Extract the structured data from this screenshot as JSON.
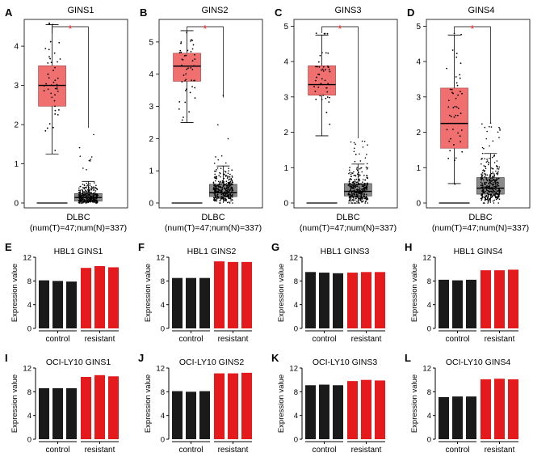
{
  "figure": {
    "colors": {
      "tumor": "#f07070",
      "normal": "#8a8a8a",
      "control": "#1a1a1a",
      "resistant": "#e41a1c",
      "asterisk": "#e41a1c",
      "axis": "#000000",
      "frame": "#000000"
    },
    "significance_mark": "*"
  },
  "chart_data": [
    {
      "type": "box",
      "panel": "A",
      "title": "GINS1",
      "ylim": [
        0,
        4.6
      ],
      "yticks": [
        0,
        1,
        2,
        3,
        4
      ],
      "xlabel": "DLBC",
      "xsublabel": "(num(T)=47;num(N)=337)",
      "tumor_n": 47,
      "normal_n": 337,
      "tumor": {
        "min": 1.25,
        "q1": 2.47,
        "median": 3.0,
        "q3": 3.5,
        "max": 4.55,
        "lo": 1.2,
        "hi": 4.6
      },
      "normal": {
        "min": 0.0,
        "q1": 0.05,
        "median": 0.14,
        "q3": 0.24,
        "max": 0.55,
        "lo": 0.0,
        "hi": 1.9
      }
    },
    {
      "type": "box",
      "panel": "B",
      "title": "GINS2",
      "ylim": [
        0,
        5.6
      ],
      "yticks": [
        0,
        1,
        2,
        3,
        4,
        5
      ],
      "xlabel": "DLBC",
      "xsublabel": "(num(T)=47;num(N)=337)",
      "tumor_n": 47,
      "normal_n": 337,
      "tumor": {
        "min": 2.5,
        "q1": 3.78,
        "median": 4.25,
        "q3": 4.65,
        "max": 5.35,
        "lo": 2.3,
        "hi": 5.4
      },
      "normal": {
        "min": 0.0,
        "q1": 0.2,
        "median": 0.32,
        "q3": 0.58,
        "max": 1.15,
        "lo": 0.0,
        "hi": 3.5
      }
    },
    {
      "type": "box",
      "panel": "C",
      "title": "GINS3",
      "ylim": [
        0,
        5.1
      ],
      "yticks": [
        0,
        1,
        2,
        3,
        4,
        5
      ],
      "xlabel": "DLBC",
      "xsublabel": "(num(T)=47;num(N)=337)",
      "tumor_n": 47,
      "normal_n": 337,
      "tumor": {
        "min": 1.9,
        "q1": 3.05,
        "median": 3.35,
        "q3": 3.88,
        "max": 4.75,
        "lo": 1.7,
        "hi": 4.8
      },
      "normal": {
        "min": 0.0,
        "q1": 0.2,
        "median": 0.33,
        "q3": 0.55,
        "max": 1.1,
        "lo": 0.0,
        "hi": 1.8
      }
    },
    {
      "type": "box",
      "panel": "D",
      "title": "GINS4",
      "ylim": [
        0,
        5.1
      ],
      "yticks": [
        0,
        1,
        2,
        3,
        4,
        5
      ],
      "xlabel": "DLBC",
      "xsublabel": "(num(T)=47;num(N)=337)",
      "tumor_n": 47,
      "normal_n": 337,
      "tumor": {
        "min": 0.55,
        "q1": 1.55,
        "median": 2.25,
        "q3": 3.25,
        "max": 4.75,
        "lo": 0.5,
        "hi": 4.8
      },
      "normal": {
        "min": 0.0,
        "q1": 0.25,
        "median": 0.42,
        "q3": 0.72,
        "max": 1.4,
        "lo": 0.0,
        "hi": 2.3
      }
    },
    {
      "type": "bar",
      "panel": "E",
      "title": "HBL1 GINS1",
      "ylabel": "Expression value",
      "ylim": [
        0,
        12
      ],
      "yticks": [
        0,
        4,
        8,
        12
      ],
      "categories": [
        "control",
        "resistant"
      ],
      "control": [
        8.1,
        8.0,
        7.9
      ],
      "resistant": [
        10.2,
        10.5,
        10.3
      ]
    },
    {
      "type": "bar",
      "panel": "F",
      "title": "HBL1 GINS2",
      "ylabel": "Expression value",
      "ylim": [
        0,
        12
      ],
      "yticks": [
        0,
        4,
        8,
        12
      ],
      "categories": [
        "control",
        "resistant"
      ],
      "control": [
        8.5,
        8.5,
        8.5
      ],
      "resistant": [
        11.3,
        11.2,
        11.2
      ]
    },
    {
      "type": "bar",
      "panel": "G",
      "title": "HBL1 GINS3",
      "ylabel": "Expression value",
      "ylim": [
        0,
        12
      ],
      "yticks": [
        0,
        4,
        8,
        12
      ],
      "categories": [
        "control",
        "resistant"
      ],
      "control": [
        9.5,
        9.4,
        9.3
      ],
      "resistant": [
        9.4,
        9.5,
        9.5
      ]
    },
    {
      "type": "bar",
      "panel": "H",
      "title": "HBL1 GINS4",
      "ylabel": "Expression value",
      "ylim": [
        0,
        12
      ],
      "yticks": [
        0,
        4,
        8,
        12
      ],
      "categories": [
        "control",
        "resistant"
      ],
      "control": [
        8.2,
        8.1,
        8.2
      ],
      "resistant": [
        9.8,
        9.8,
        9.9
      ]
    },
    {
      "type": "bar",
      "panel": "I",
      "title": "OCI-LY10 GINS1",
      "ylabel": "Expression value",
      "ylim": [
        0,
        12
      ],
      "yticks": [
        0,
        4,
        8,
        12
      ],
      "categories": [
        "control",
        "resistant"
      ],
      "control": [
        8.6,
        8.6,
        8.6
      ],
      "resistant": [
        10.5,
        10.8,
        10.6
      ]
    },
    {
      "type": "bar",
      "panel": "J",
      "title": "OCI-LY10 GINS2",
      "ylabel": "Expression value",
      "ylim": [
        0,
        12
      ],
      "yticks": [
        0,
        4,
        8,
        12
      ],
      "categories": [
        "control",
        "resistant"
      ],
      "control": [
        8.1,
        8.0,
        8.1
      ],
      "resistant": [
        11.1,
        11.1,
        11.2
      ]
    },
    {
      "type": "bar",
      "panel": "K",
      "title": "OCI-LY10 GINS3",
      "ylabel": "Expression value",
      "ylim": [
        0,
        12
      ],
      "yticks": [
        0,
        4,
        8,
        12
      ],
      "categories": [
        "control",
        "resistant"
      ],
      "control": [
        9.1,
        9.2,
        9.1
      ],
      "resistant": [
        9.8,
        10.0,
        9.9
      ]
    },
    {
      "type": "bar",
      "panel": "L",
      "title": "OCI-LY10 GINS4",
      "ylabel": "Expression value",
      "ylim": [
        0,
        12
      ],
      "yticks": [
        0,
        4,
        8,
        12
      ],
      "categories": [
        "control",
        "resistant"
      ],
      "control": [
        7.1,
        7.2,
        7.2
      ],
      "resistant": [
        10.1,
        10.2,
        10.1
      ]
    }
  ]
}
